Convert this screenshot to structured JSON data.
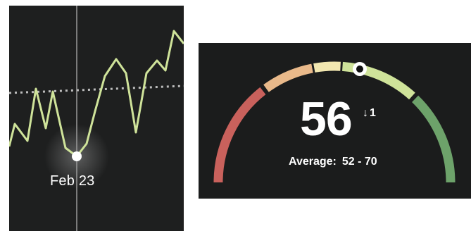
{
  "trend": {
    "selected_date": "Feb 23",
    "colors": {
      "line": "#cfe39a",
      "baseline": "#bdbdbd",
      "cursor": "#9a9a9a",
      "point": "#ffffff"
    }
  },
  "gauge": {
    "score": "56",
    "delta_arrow": "↓",
    "delta_value": "1",
    "average_label": "Average:",
    "average_value": "52 - 70",
    "score_fraction": 0.57,
    "colors": {
      "segment_low": "#c9615c",
      "segment_mid_low": "#e9b98a",
      "segment_mid": "#f2e7b0",
      "segment_mid_high": "#cfe39a",
      "segment_high": "#6da26a",
      "marker": "#ffffff"
    }
  }
}
